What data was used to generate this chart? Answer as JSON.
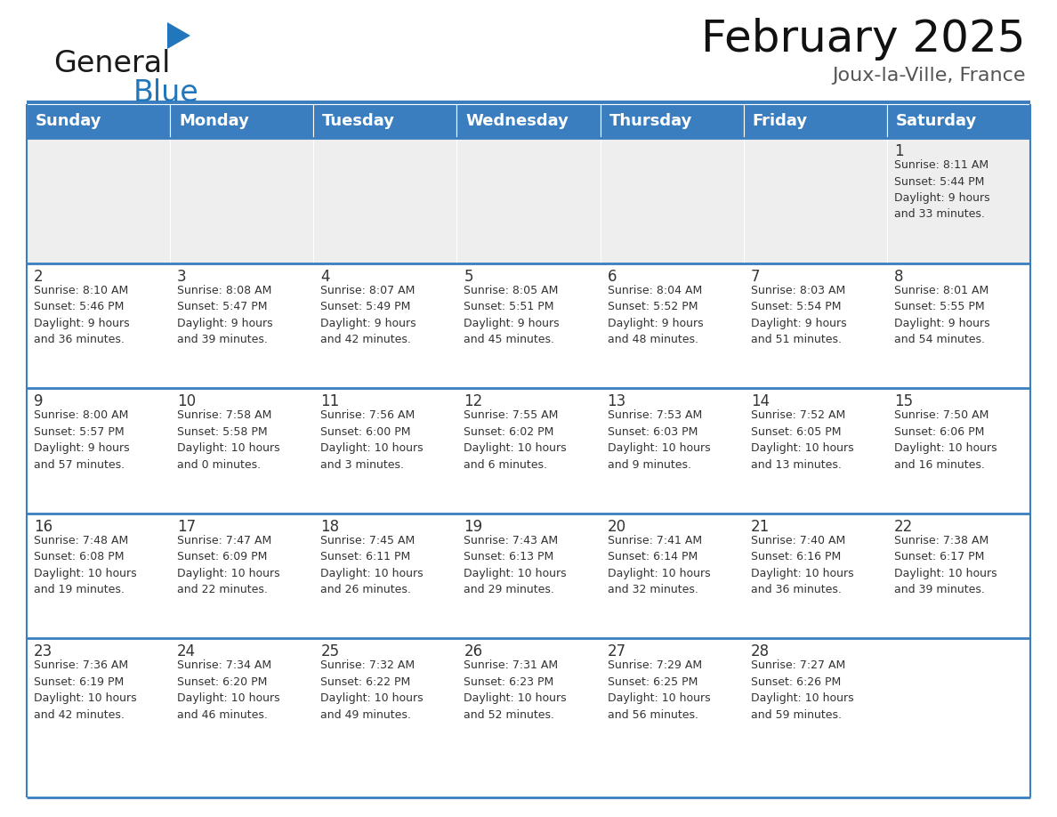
{
  "title": "February 2025",
  "subtitle": "Joux-la-Ville, France",
  "header_bg": "#3a7ebf",
  "header_text_color": "#ffffff",
  "cell_bg_gray": "#eeeeee",
  "cell_bg_white": "#ffffff",
  "text_color": "#333333",
  "border_color": "#3a7ebf",
  "days_of_week": [
    "Sunday",
    "Monday",
    "Tuesday",
    "Wednesday",
    "Thursday",
    "Friday",
    "Saturday"
  ],
  "weeks": [
    [
      {
        "day": null,
        "info": null
      },
      {
        "day": null,
        "info": null
      },
      {
        "day": null,
        "info": null
      },
      {
        "day": null,
        "info": null
      },
      {
        "day": null,
        "info": null
      },
      {
        "day": null,
        "info": null
      },
      {
        "day": 1,
        "info": "Sunrise: 8:11 AM\nSunset: 5:44 PM\nDaylight: 9 hours\nand 33 minutes."
      }
    ],
    [
      {
        "day": 2,
        "info": "Sunrise: 8:10 AM\nSunset: 5:46 PM\nDaylight: 9 hours\nand 36 minutes."
      },
      {
        "day": 3,
        "info": "Sunrise: 8:08 AM\nSunset: 5:47 PM\nDaylight: 9 hours\nand 39 minutes."
      },
      {
        "day": 4,
        "info": "Sunrise: 8:07 AM\nSunset: 5:49 PM\nDaylight: 9 hours\nand 42 minutes."
      },
      {
        "day": 5,
        "info": "Sunrise: 8:05 AM\nSunset: 5:51 PM\nDaylight: 9 hours\nand 45 minutes."
      },
      {
        "day": 6,
        "info": "Sunrise: 8:04 AM\nSunset: 5:52 PM\nDaylight: 9 hours\nand 48 minutes."
      },
      {
        "day": 7,
        "info": "Sunrise: 8:03 AM\nSunset: 5:54 PM\nDaylight: 9 hours\nand 51 minutes."
      },
      {
        "day": 8,
        "info": "Sunrise: 8:01 AM\nSunset: 5:55 PM\nDaylight: 9 hours\nand 54 minutes."
      }
    ],
    [
      {
        "day": 9,
        "info": "Sunrise: 8:00 AM\nSunset: 5:57 PM\nDaylight: 9 hours\nand 57 minutes."
      },
      {
        "day": 10,
        "info": "Sunrise: 7:58 AM\nSunset: 5:58 PM\nDaylight: 10 hours\nand 0 minutes."
      },
      {
        "day": 11,
        "info": "Sunrise: 7:56 AM\nSunset: 6:00 PM\nDaylight: 10 hours\nand 3 minutes."
      },
      {
        "day": 12,
        "info": "Sunrise: 7:55 AM\nSunset: 6:02 PM\nDaylight: 10 hours\nand 6 minutes."
      },
      {
        "day": 13,
        "info": "Sunrise: 7:53 AM\nSunset: 6:03 PM\nDaylight: 10 hours\nand 9 minutes."
      },
      {
        "day": 14,
        "info": "Sunrise: 7:52 AM\nSunset: 6:05 PM\nDaylight: 10 hours\nand 13 minutes."
      },
      {
        "day": 15,
        "info": "Sunrise: 7:50 AM\nSunset: 6:06 PM\nDaylight: 10 hours\nand 16 minutes."
      }
    ],
    [
      {
        "day": 16,
        "info": "Sunrise: 7:48 AM\nSunset: 6:08 PM\nDaylight: 10 hours\nand 19 minutes."
      },
      {
        "day": 17,
        "info": "Sunrise: 7:47 AM\nSunset: 6:09 PM\nDaylight: 10 hours\nand 22 minutes."
      },
      {
        "day": 18,
        "info": "Sunrise: 7:45 AM\nSunset: 6:11 PM\nDaylight: 10 hours\nand 26 minutes."
      },
      {
        "day": 19,
        "info": "Sunrise: 7:43 AM\nSunset: 6:13 PM\nDaylight: 10 hours\nand 29 minutes."
      },
      {
        "day": 20,
        "info": "Sunrise: 7:41 AM\nSunset: 6:14 PM\nDaylight: 10 hours\nand 32 minutes."
      },
      {
        "day": 21,
        "info": "Sunrise: 7:40 AM\nSunset: 6:16 PM\nDaylight: 10 hours\nand 36 minutes."
      },
      {
        "day": 22,
        "info": "Sunrise: 7:38 AM\nSunset: 6:17 PM\nDaylight: 10 hours\nand 39 minutes."
      }
    ],
    [
      {
        "day": 23,
        "info": "Sunrise: 7:36 AM\nSunset: 6:19 PM\nDaylight: 10 hours\nand 42 minutes."
      },
      {
        "day": 24,
        "info": "Sunrise: 7:34 AM\nSunset: 6:20 PM\nDaylight: 10 hours\nand 46 minutes."
      },
      {
        "day": 25,
        "info": "Sunrise: 7:32 AM\nSunset: 6:22 PM\nDaylight: 10 hours\nand 49 minutes."
      },
      {
        "day": 26,
        "info": "Sunrise: 7:31 AM\nSunset: 6:23 PM\nDaylight: 10 hours\nand 52 minutes."
      },
      {
        "day": 27,
        "info": "Sunrise: 7:29 AM\nSunset: 6:25 PM\nDaylight: 10 hours\nand 56 minutes."
      },
      {
        "day": 28,
        "info": "Sunrise: 7:27 AM\nSunset: 6:26 PM\nDaylight: 10 hours\nand 59 minutes."
      },
      {
        "day": null,
        "info": null
      }
    ]
  ],
  "logo_text1": "General",
  "logo_text2": "Blue",
  "logo_text1_color": "#1a1a1a",
  "logo_text2_color": "#2176bc",
  "logo_triangle_color": "#2176bc",
  "title_fontsize": 36,
  "subtitle_fontsize": 16,
  "header_fontsize": 13,
  "day_num_fontsize": 12,
  "info_fontsize": 9
}
